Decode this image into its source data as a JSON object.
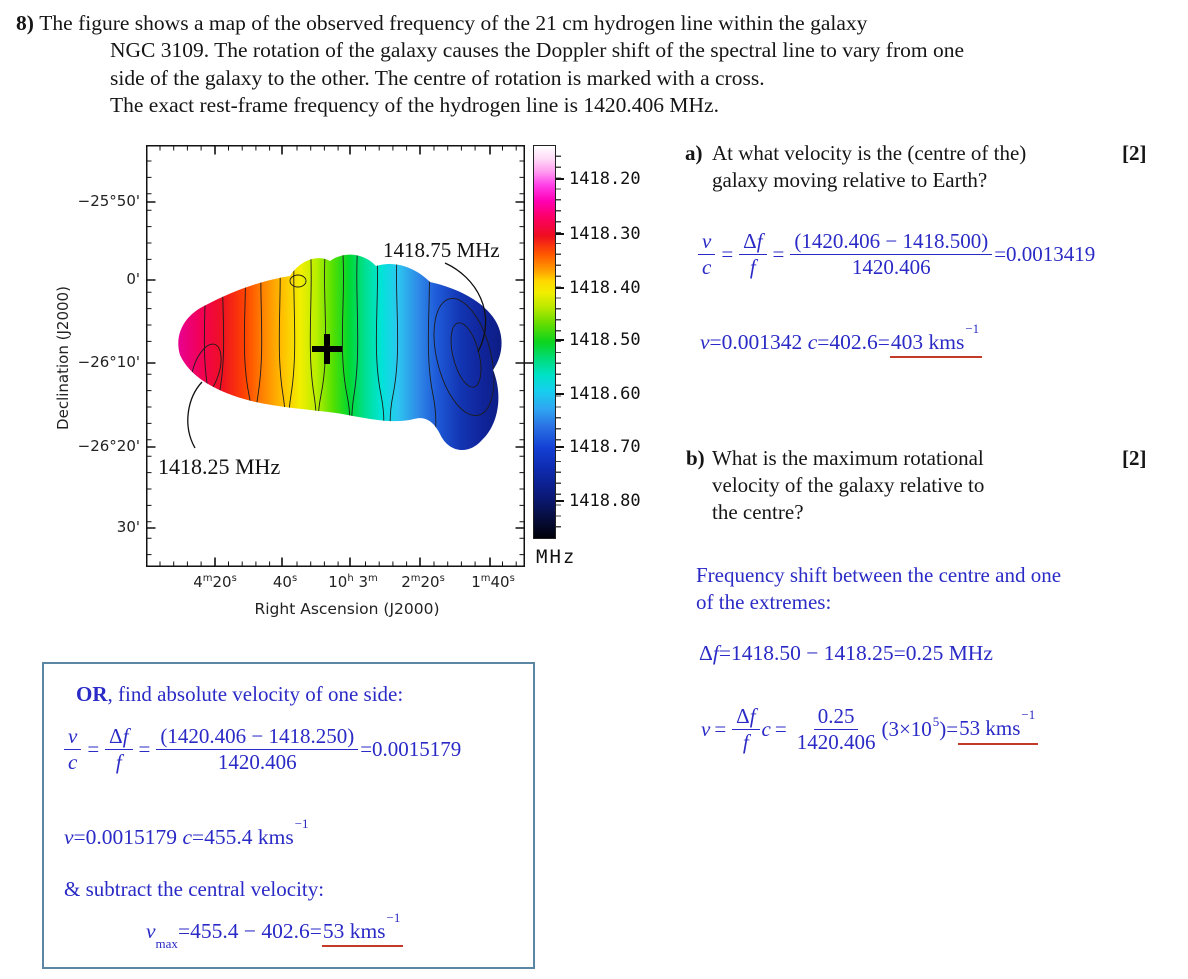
{
  "colors": {
    "accent_blue": "#2a2ac6",
    "answer_underline_red": "#c43a28",
    "box_border_blue": "#5b87a5"
  },
  "question": {
    "number": "8)",
    "line1": "The figure shows a map of the observed frequency of the 21 cm hydrogen line within the galaxy",
    "line2": "NGC 3109. The rotation of the galaxy causes the Doppler shift of the spectral line to vary from one",
    "line3": "side of the galaxy to the other. The centre of rotation is marked with a cross.",
    "line4": "The exact rest-frame frequency of the hydrogen line is 1420.406 MHz."
  },
  "figure": {
    "ylabel": "Declination (J2000)",
    "xlabel": "Right Ascension (J2000)",
    "yticks": [
      "−25°50'",
      "0'",
      "−26°10'",
      "−26°20'",
      "30'"
    ],
    "xticks": [
      {
        "a": "4",
        "as": "m",
        "b": "20",
        "bs": "s"
      },
      {
        "a": "40",
        "as": "s",
        "b": "",
        "bs": ""
      },
      {
        "a": "10",
        "as": "h",
        "b": " 3",
        "bs": "m"
      },
      {
        "a": "2",
        "as": "m",
        "b": "20",
        "bs": "s"
      },
      {
        "a": "1",
        "as": "m",
        "b": "40",
        "bs": "s"
      }
    ],
    "colorbar": {
      "labels": [
        "1418.20",
        "1418.30",
        "1418.40",
        "1418.50",
        "1418.60",
        "1418.70",
        "1418.80"
      ],
      "unit": "MHz"
    },
    "ann_high": "1418.75 MHz",
    "ann_low": "1418.25 MHz"
  },
  "part_a": {
    "label": "a)",
    "marks": "[2]",
    "q1": "At what velocity is the (centre of the)",
    "q2": "galaxy moving relative to Earth?",
    "eq1": {
      "f1n": "v",
      "f1d": "c",
      "e1": "=",
      "f2nd": "Δ",
      "f2nf": "f",
      "f2d": "f",
      "e2": "=",
      "f3n": "(1420.406 − 1418.500)",
      "f3d": "1420.406",
      "res": "=0.0013419"
    },
    "eq2": {
      "v": "v",
      "s1": "=0.001342 ",
      "c": "c",
      "s2": "=402.6=",
      "ans": "403 kms",
      "sup": "−1"
    }
  },
  "part_b": {
    "label": "b)",
    "marks": "[2]",
    "q1": "What is the maximum rotational",
    "q2": "velocity of the galaxy relative to",
    "q3": "the centre?",
    "note1": "Frequency shift between the centre and one",
    "note2": "of the extremes:",
    "eq1": {
      "d": "Δ",
      "f": "f",
      "rest": "=1418.50 − 1418.25=0.25 MHz"
    },
    "eq2": {
      "v": "v",
      "e1": "=",
      "fnd": "Δ",
      "fnf": "f",
      "fd": "f",
      "c": "c",
      "e2": "=",
      "f2n": "0.25",
      "f2d": "1420.406",
      "par": "(3×10",
      "psup": "5",
      "par2": ")=",
      "ans": "53 kms",
      "sup": "−1"
    }
  },
  "or_box": {
    "title_bold": "OR",
    "title_rest": ", find absolute velocity of one side:",
    "eq1": {
      "f1n": "v",
      "f1d": "c",
      "e1": "=",
      "f2nd": "Δ",
      "f2nf": "f",
      "f2d": "f",
      "e2": "=",
      "f3n": "(1420.406 − 1418.250)",
      "f3d": "1420.406",
      "res": "=0.0015179"
    },
    "eq2": {
      "v": "v",
      "s1": "=0.0015179 ",
      "c": "c",
      "s2": "=455.4 kms",
      "sup": "−1"
    },
    "note": "& subtract the central velocity:",
    "eq3": {
      "v": "v",
      "sub": "max",
      "s1": "=455.4 − 402.6=",
      "ans": "53 kms",
      "sup": "−1"
    }
  }
}
